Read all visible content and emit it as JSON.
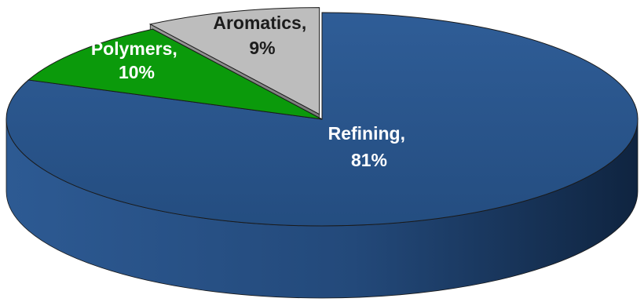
{
  "chart_data": {
    "type": "pie",
    "style": "3d",
    "categories": [
      "Refining",
      "Polymers",
      "Aromatics"
    ],
    "values": [
      81,
      10,
      9
    ],
    "unit": "%",
    "colors": [
      "#2a5489",
      "#0b9a0b",
      "#bdbdbd"
    ],
    "label_colors": [
      "#ffffff",
      "#ffffff",
      "#1c1c1c"
    ],
    "labels": [
      {
        "name": "Refining,",
        "value": "81%"
      },
      {
        "name": "Polymers,",
        "value": "10%"
      },
      {
        "name": "Aromatics,",
        "value": "9%"
      }
    ],
    "title": "",
    "legend": "none",
    "exploded_slice": "Aromatics"
  }
}
